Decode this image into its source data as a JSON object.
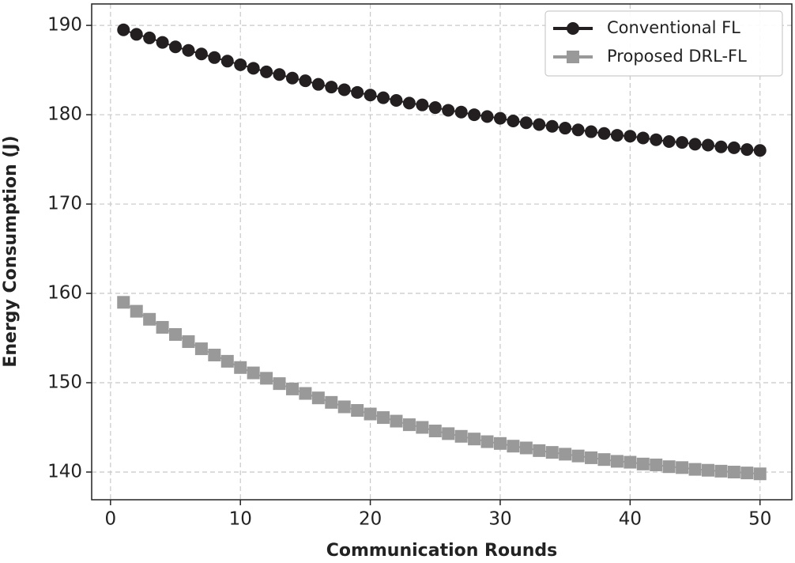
{
  "chart_data": {
    "type": "line",
    "xlabel": "Communication Rounds",
    "ylabel": "Energy Consumption (J)",
    "x": [
      1,
      2,
      3,
      4,
      5,
      6,
      7,
      8,
      9,
      10,
      11,
      12,
      13,
      14,
      15,
      16,
      17,
      18,
      19,
      20,
      21,
      22,
      23,
      24,
      25,
      26,
      27,
      28,
      29,
      30,
      31,
      32,
      33,
      34,
      35,
      36,
      37,
      38,
      39,
      40,
      41,
      42,
      43,
      44,
      45,
      46,
      47,
      48,
      49,
      50
    ],
    "series": [
      {
        "name": "Conventional FL",
        "color": "#231f20",
        "marker": "circle",
        "values": [
          189.5,
          189.0,
          188.6,
          188.1,
          187.6,
          187.2,
          186.8,
          186.4,
          186.0,
          185.6,
          185.2,
          184.8,
          184.5,
          184.1,
          183.8,
          183.4,
          183.1,
          182.8,
          182.5,
          182.2,
          181.9,
          181.6,
          181.3,
          181.1,
          180.8,
          180.5,
          180.3,
          180.0,
          179.8,
          179.6,
          179.3,
          179.1,
          178.9,
          178.7,
          178.5,
          178.3,
          178.1,
          177.9,
          177.7,
          177.6,
          177.4,
          177.2,
          177.0,
          176.9,
          176.7,
          176.6,
          176.4,
          176.3,
          176.1,
          176.0
        ]
      },
      {
        "name": "Proposed DRL-FL",
        "color": "#999999",
        "marker": "square",
        "values": [
          159.0,
          158.0,
          157.1,
          156.2,
          155.4,
          154.6,
          153.8,
          153.1,
          152.4,
          151.7,
          151.1,
          150.5,
          149.9,
          149.3,
          148.8,
          148.3,
          147.8,
          147.3,
          146.9,
          146.5,
          146.1,
          145.7,
          145.3,
          145.0,
          144.6,
          144.3,
          144.0,
          143.7,
          143.4,
          143.2,
          142.9,
          142.7,
          142.4,
          142.2,
          142.0,
          141.8,
          141.6,
          141.4,
          141.2,
          141.1,
          140.9,
          140.8,
          140.6,
          140.5,
          140.3,
          140.2,
          140.1,
          140.0,
          139.9,
          139.8
        ]
      }
    ],
    "xlim": [
      -1.45,
      52.45
    ],
    "xticks": [
      0,
      10,
      20,
      30,
      40,
      50
    ],
    "ylim": [
      136.9,
      192.4
    ],
    "yticks": [
      140,
      150,
      160,
      170,
      180,
      190
    ],
    "grid": true,
    "legend": "upper right"
  }
}
